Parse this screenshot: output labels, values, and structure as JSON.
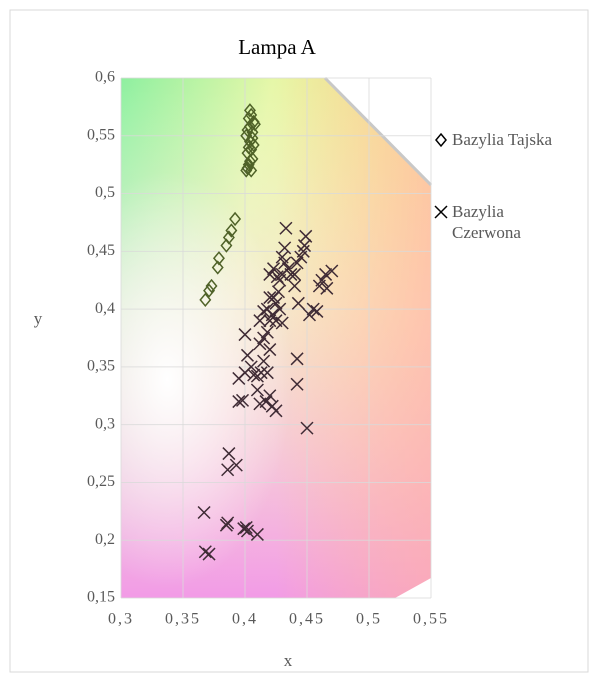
{
  "chart_data": {
    "type": "scatter",
    "title": "Lampa A",
    "x_label": "x",
    "y_label": "y",
    "xlim": [
      0.3,
      0.55
    ],
    "ylim": [
      0.15,
      0.6
    ],
    "xticks": [
      {
        "value": 0.3,
        "label": "0,3"
      },
      {
        "value": 0.35,
        "label": "0,35"
      },
      {
        "value": 0.4,
        "label": "0,4"
      },
      {
        "value": 0.45,
        "label": "0,45"
      },
      {
        "value": 0.5,
        "label": "0,5"
      },
      {
        "value": 0.55,
        "label": "0,55"
      }
    ],
    "yticks": [
      {
        "value": 0.15,
        "label": "0,15"
      },
      {
        "value": 0.2,
        "label": "0,2"
      },
      {
        "value": 0.25,
        "label": "0,25"
      },
      {
        "value": 0.3,
        "label": "0,3"
      },
      {
        "value": 0.35,
        "label": "0,35"
      },
      {
        "value": 0.4,
        "label": "0,4"
      },
      {
        "value": 0.45,
        "label": "0,45"
      },
      {
        "value": 0.5,
        "label": "0,5"
      },
      {
        "value": 0.55,
        "label": "0,55"
      },
      {
        "value": 0.6,
        "label": "0,6"
      }
    ],
    "grid": true,
    "series": [
      {
        "name": "Bazylia Tajska",
        "color": "#4f6228",
        "marker": "diamond",
        "x": [
          0.368,
          0.371,
          0.373,
          0.378,
          0.379,
          0.385,
          0.387,
          0.389,
          0.392,
          0.401,
          0.402,
          0.403,
          0.404,
          0.405,
          0.406,
          0.402,
          0.403,
          0.404,
          0.405,
          0.406,
          0.407,
          0.401,
          0.402,
          0.404,
          0.406,
          0.408,
          0.403,
          0.405,
          0.407,
          0.404
        ],
        "y": [
          0.408,
          0.416,
          0.42,
          0.436,
          0.444,
          0.455,
          0.462,
          0.468,
          0.478,
          0.52,
          0.522,
          0.525,
          0.528,
          0.52,
          0.53,
          0.535,
          0.54,
          0.545,
          0.538,
          0.548,
          0.542,
          0.55,
          0.555,
          0.558,
          0.553,
          0.56,
          0.565,
          0.568,
          0.562,
          0.572
        ]
      },
      {
        "name": "Bazylia Czerwona",
        "color": "#3f2b35",
        "marker": "x",
        "x": [
          0.367,
          0.368,
          0.371,
          0.385,
          0.386,
          0.399,
          0.401,
          0.402,
          0.41,
          0.387,
          0.386,
          0.393,
          0.395,
          0.398,
          0.395,
          0.4,
          0.402,
          0.4,
          0.405,
          0.407,
          0.41,
          0.413,
          0.41,
          0.412,
          0.417,
          0.42,
          0.422,
          0.425,
          0.418,
          0.415,
          0.412,
          0.415,
          0.418,
          0.42,
          0.412,
          0.415,
          0.418,
          0.42,
          0.422,
          0.425,
          0.42,
          0.423,
          0.425,
          0.428,
          0.43,
          0.42,
          0.423,
          0.426,
          0.428,
          0.43,
          0.432,
          0.43,
          0.432,
          0.433,
          0.435,
          0.437,
          0.44,
          0.442,
          0.445,
          0.447,
          0.448,
          0.449,
          0.443,
          0.442,
          0.442,
          0.45,
          0.452,
          0.455,
          0.458,
          0.46,
          0.462,
          0.465,
          0.47,
          0.466,
          0.427,
          0.44
        ],
        "y": [
          0.224,
          0.19,
          0.188,
          0.213,
          0.215,
          0.21,
          0.211,
          0.208,
          0.205,
          0.275,
          0.261,
          0.265,
          0.32,
          0.321,
          0.34,
          0.345,
          0.36,
          0.378,
          0.35,
          0.343,
          0.342,
          0.345,
          0.33,
          0.318,
          0.32,
          0.325,
          0.316,
          0.312,
          0.345,
          0.355,
          0.37,
          0.375,
          0.38,
          0.365,
          0.39,
          0.398,
          0.4,
          0.39,
          0.395,
          0.39,
          0.41,
          0.41,
          0.405,
          0.4,
          0.388,
          0.43,
          0.435,
          0.428,
          0.425,
          0.43,
          0.44,
          0.445,
          0.453,
          0.47,
          0.435,
          0.43,
          0.42,
          0.44,
          0.445,
          0.45,
          0.455,
          0.463,
          0.405,
          0.357,
          0.335,
          0.297,
          0.395,
          0.4,
          0.398,
          0.42,
          0.425,
          0.43,
          0.433,
          0.418,
          0.415,
          0.43
        ]
      }
    ],
    "legend": "right"
  }
}
